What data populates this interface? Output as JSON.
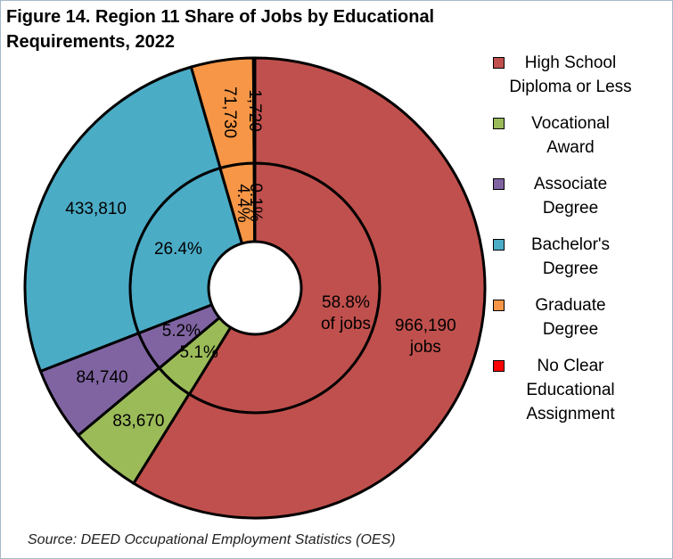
{
  "chart_data": {
    "type": "doughnut",
    "title": "Figure 14. Region 11 Share of Jobs by Educational Requirements, 2022",
    "source": "Source: DEED Occupational Employment Statistics (OES)",
    "categories": [
      "High School Diploma or Less",
      "Vocational Award",
      "Associate Degree",
      "Bachelor's Degree",
      "Graduate Degree",
      "No Clear Educational Assignment"
    ],
    "colors": [
      "#c0504d",
      "#9bbb59",
      "#8064a2",
      "#4bacc6",
      "#f79646",
      "#ff0000"
    ],
    "series": [
      {
        "values": [
          58.8,
          5.1,
          5.2,
          26.4,
          4.4,
          0.1
        ],
        "value_labels": [
          "58.8%\nof jobs",
          "5.1%",
          "5.2%",
          "26.4%",
          "4.4%",
          "0.1%"
        ]
      },
      {
        "values": [
          966190,
          83670,
          84740,
          433810,
          71730,
          1720
        ],
        "value_labels": [
          "966,190\njobs",
          "83,670",
          "84,740",
          "433,810",
          "71,730",
          "1,720"
        ]
      }
    ]
  }
}
